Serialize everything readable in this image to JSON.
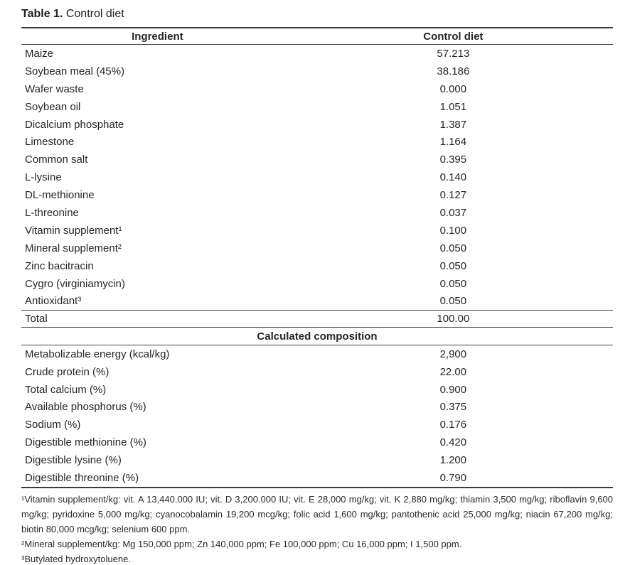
{
  "title": {
    "bold": "Table 1.",
    "rest": " Control diet"
  },
  "table": {
    "header": {
      "ingredient": "Ingredient",
      "control_diet": "Control diet"
    },
    "ingredients": [
      {
        "name": "Maize",
        "value": "57.213"
      },
      {
        "name": "Soybean meal (45%)",
        "value": "38.186"
      },
      {
        "name": "Wafer waste",
        "value": "0.000"
      },
      {
        "name": "Soybean oil",
        "value": "1.051"
      },
      {
        "name": "Dicalcium phosphate",
        "value": "1.387"
      },
      {
        "name": "Limestone",
        "value": "1.164"
      },
      {
        "name": "Common salt",
        "value": "0.395"
      },
      {
        "name": "L-lysine",
        "value": "0.140"
      },
      {
        "name": "DL-methionine",
        "value": "0.127"
      },
      {
        "name": "L-threonine",
        "value": "0.037"
      },
      {
        "name": "Vitamin supplement¹",
        "value": "0.100"
      },
      {
        "name": "Mineral supplement²",
        "value": "0.050"
      },
      {
        "name": "Zinc bacitracin",
        "value": "0.050"
      },
      {
        "name": "Cygro (virginiamycin)",
        "value": "0.050"
      },
      {
        "name": "Antioxidant³",
        "value": "0.050"
      }
    ],
    "total": {
      "name": "Total",
      "value": "100.00"
    },
    "section2_header": "Calculated composition",
    "composition": [
      {
        "name": "Metabolizable energy (kcal/kg)",
        "value": "2,900"
      },
      {
        "name": "Crude protein (%)",
        "value": "22.00"
      },
      {
        "name": "Total calcium (%)",
        "value": "0.900"
      },
      {
        "name": "Available phosphorus (%)",
        "value": "0.375"
      },
      {
        "name": "Sodium (%)",
        "value": "0.176"
      },
      {
        "name": "Digestible methionine (%)",
        "value": "0.420"
      },
      {
        "name": "Digestible lysine (%)",
        "value": "1.200"
      },
      {
        "name": "Digestible threonine (%)",
        "value": "0.790"
      }
    ]
  },
  "footnotes": [
    "¹Vitamin supplement/kg: vit. A 13,440.000 IU; vit. D 3,200.000 IU; vit. E 28,000 mg/kg; vit. K 2,880 mg/kg; thiamin 3,500 mg/kg; riboflavin 9,600 mg/kg; pyridoxine 5,000 mg/kg; cyanocobalamin 19,200 mcg/kg; folic acid 1,600 mg/kg; pantothenic acid 25,000 mg/kg; niacin 67,200 mg/kg; biotin 80,000 mcg/kg; selenium 600 ppm.",
    "²Mineral supplement/kg: Mg 150,000 ppm; Zn 140,000 ppm; Fe 100,000 ppm; Cu 16,000 ppm; I 1,500 ppm.",
    "³Butylated hydroxytoluene."
  ],
  "colors": {
    "text": "#262626",
    "rule_thick": "#3b3b3b",
    "rule_thin": "#444444",
    "background": "#ffffff"
  }
}
